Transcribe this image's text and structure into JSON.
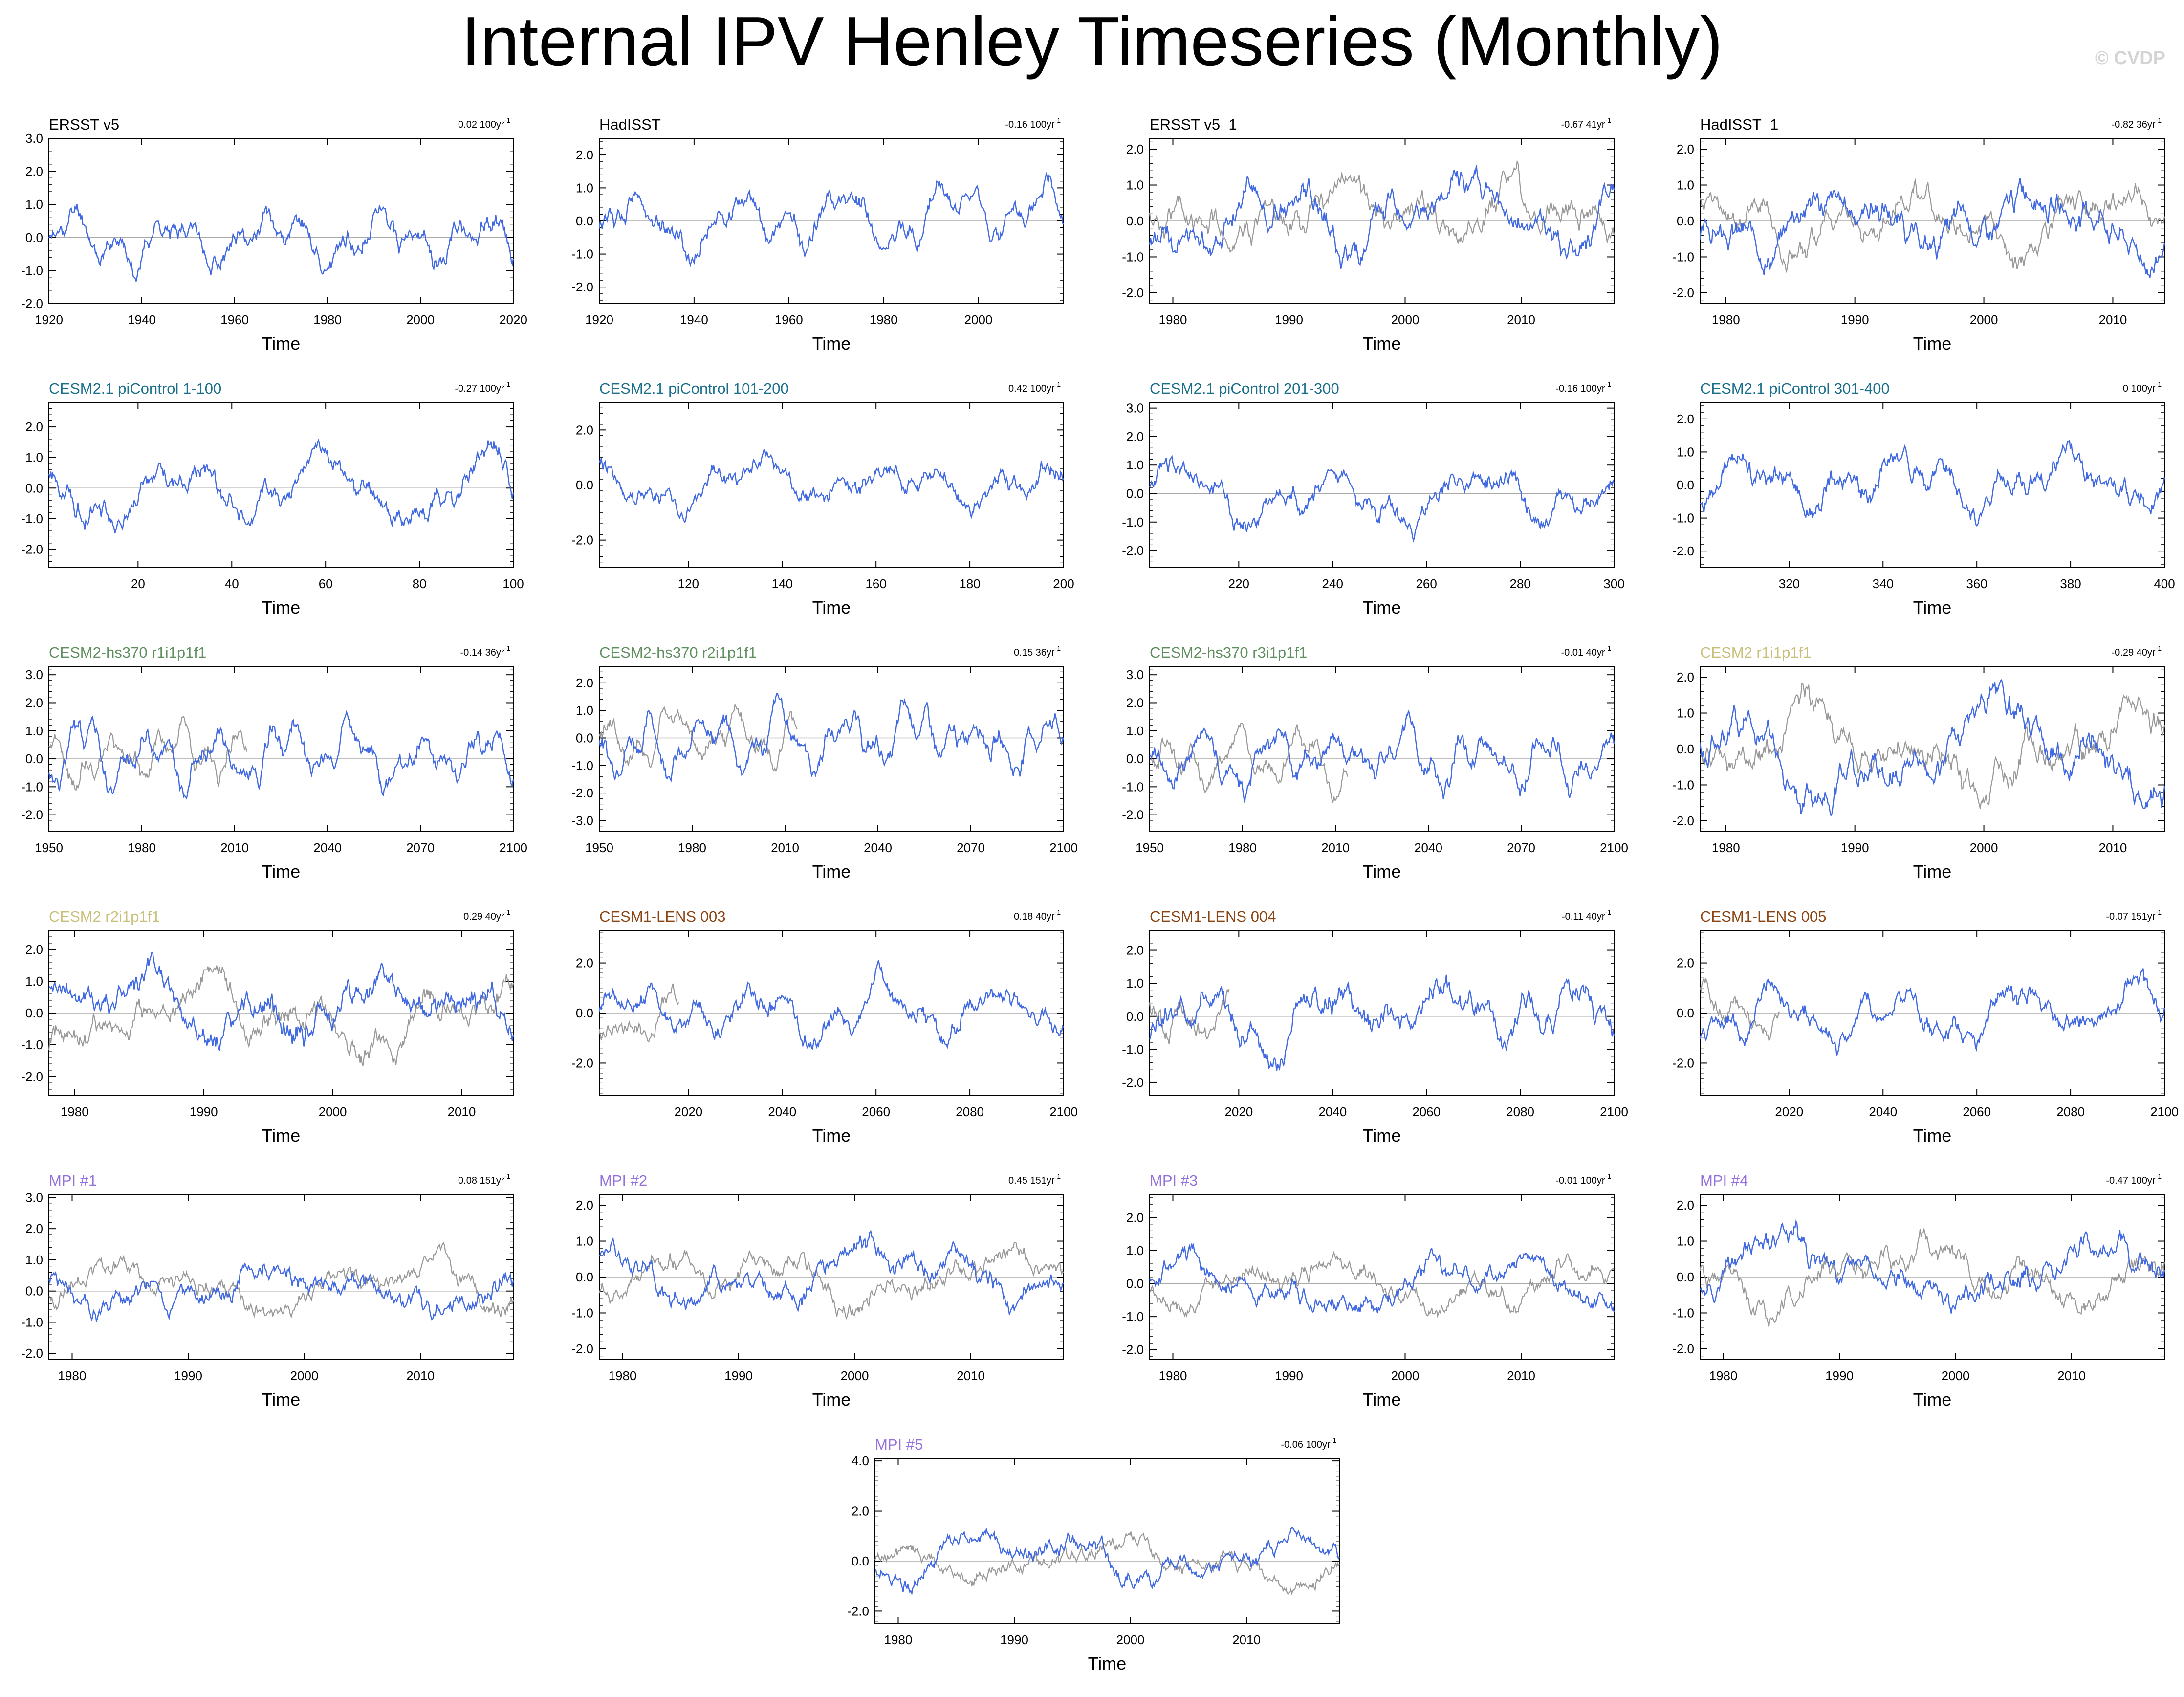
{
  "title": "Internal IPV Henley Timeseries (Monthly)",
  "credit": "© CVDP",
  "obs_color": "#999999",
  "model_color": "#4169E1",
  "chart_data": [
    {
      "type": "line",
      "title": "ERSST v5",
      "title_color": "#000000",
      "trend": "0.02 100yr",
      "trend_sup": "-1",
      "xlabel": "Time",
      "xlim": [
        1920,
        2020
      ],
      "xticks": [
        1920,
        1940,
        1960,
        1980,
        2000,
        2020
      ],
      "ylim": [
        -2.0,
        3.0
      ],
      "yticks": [
        "3.0",
        "2.0",
        "1.0",
        "0.0",
        "-1.0",
        "-2.0"
      ],
      "obs_overlay": false,
      "seed": 11,
      "amp": 0.75,
      "period": 0.06
    },
    {
      "type": "line",
      "title": "HadISST",
      "title_color": "#000000",
      "trend": "-0.16 100yr",
      "trend_sup": "-1",
      "xlabel": "Time",
      "xlim": [
        1920,
        2018
      ],
      "xticks": [
        1920,
        1940,
        1960,
        1980,
        2000
      ],
      "ylim": [
        -2.5,
        2.5
      ],
      "yticks": [
        "2.0",
        "1.0",
        "0.0",
        "-1.0",
        "-2.0"
      ],
      "obs_overlay": false,
      "seed": 12,
      "amp": 0.8,
      "period": 0.06
    },
    {
      "type": "line",
      "title": "ERSST v5_1",
      "title_color": "#000000",
      "trend": "-0.67 41yr",
      "trend_sup": "-1",
      "xlabel": "Time",
      "xlim": [
        1978,
        2018
      ],
      "xticks": [
        1980,
        1990,
        2000,
        2010
      ],
      "ylim": [
        -2.3,
        2.3
      ],
      "yticks": [
        "2.0",
        "1.0",
        "0.0",
        "-1.0",
        "-2.0"
      ],
      "obs_overlay": true,
      "seed": 13,
      "amp": 0.9,
      "period": 0.03
    },
    {
      "type": "line",
      "title": "HadISST_1",
      "title_color": "#000000",
      "trend": "-0.82 36yr",
      "trend_sup": "-1",
      "xlabel": "Time",
      "xlim": [
        1978,
        2014
      ],
      "xticks": [
        1980,
        1990,
        2000,
        2010
      ],
      "ylim": [
        -2.3,
        2.3
      ],
      "yticks": [
        "2.0",
        "1.0",
        "0.0",
        "-1.0",
        "-2.0"
      ],
      "obs_overlay": true,
      "seed": 14,
      "amp": 0.9,
      "period": 0.03
    },
    {
      "type": "line",
      "title": "CESM2.1 piControl 1-100",
      "title_color": "#1a6f8a",
      "trend": "-0.27 100yr",
      "trend_sup": "-1",
      "xlabel": "Time",
      "xlim": [
        1,
        100
      ],
      "xticks": [
        20,
        40,
        60,
        80,
        100
      ],
      "ylim": [
        -2.6,
        2.8
      ],
      "yticks": [
        "2.0",
        "1.0",
        "0.0",
        "-1.0",
        "-2.0"
      ],
      "obs_overlay": false,
      "seed": 21,
      "amp": 0.85,
      "period": 0.04
    },
    {
      "type": "line",
      "title": "CESM2.1 piControl 101-200",
      "title_color": "#1a6f8a",
      "trend": "0.42 100yr",
      "trend_sup": "-1",
      "xlabel": "Time",
      "xlim": [
        101,
        200
      ],
      "xticks": [
        120,
        140,
        160,
        180,
        200
      ],
      "ylim": [
        -3.0,
        3.0
      ],
      "yticks": [
        "2.0",
        "0.0",
        "-2.0"
      ],
      "obs_overlay": false,
      "seed": 22,
      "amp": 0.8,
      "period": 0.04
    },
    {
      "type": "line",
      "title": "CESM2.1 piControl 201-300",
      "title_color": "#1a6f8a",
      "trend": "-0.16 100yr",
      "trend_sup": "-1",
      "xlabel": "Time",
      "xlim": [
        201,
        300
      ],
      "xticks": [
        220,
        240,
        260,
        280,
        300
      ],
      "ylim": [
        -2.6,
        3.2
      ],
      "yticks": [
        "3.0",
        "2.0",
        "1.0",
        "0.0",
        "-1.0",
        "-2.0"
      ],
      "obs_overlay": false,
      "seed": 23,
      "amp": 0.9,
      "period": 0.04
    },
    {
      "type": "line",
      "title": "CESM2.1 piControl 301-400",
      "title_color": "#1a6f8a",
      "trend": "0 100yr",
      "trend_sup": "-1",
      "xlabel": "Time",
      "xlim": [
        301,
        400
      ],
      "xticks": [
        320,
        340,
        360,
        380,
        400
      ],
      "ylim": [
        -2.5,
        2.5
      ],
      "yticks": [
        "2.0",
        "1.0",
        "0.0",
        "-1.0",
        "-2.0"
      ],
      "obs_overlay": false,
      "seed": 24,
      "amp": 0.85,
      "period": 0.04
    },
    {
      "type": "line",
      "title": "CESM2-hs370 r1i1p1f1",
      "title_color": "#5f8f5f",
      "trend": "-0.14 36yr",
      "trend_sup": "-1",
      "xlabel": "Time",
      "xlim": [
        1950,
        2100
      ],
      "xticks": [
        1950,
        1980,
        2010,
        2040,
        2070,
        2100
      ],
      "ylim": [
        -2.6,
        3.3
      ],
      "yticks": [
        "3.0",
        "2.0",
        "1.0",
        "0.0",
        "-1.0",
        "-2.0"
      ],
      "obs_overlay": true,
      "obs_range": [
        1950,
        2014
      ],
      "seed": 31,
      "amp": 0.95,
      "period": 0.09
    },
    {
      "type": "line",
      "title": "CESM2-hs370 r2i1p1f1",
      "title_color": "#5f8f5f",
      "trend": "0.15 36yr",
      "trend_sup": "-1",
      "xlabel": "Time",
      "xlim": [
        1950,
        2100
      ],
      "xticks": [
        1950,
        1980,
        2010,
        2040,
        2070,
        2100
      ],
      "ylim": [
        -3.4,
        2.6
      ],
      "yticks": [
        "2.0",
        "1.0",
        "0.0",
        "-1.0",
        "-2.0",
        "-3.0"
      ],
      "obs_overlay": true,
      "obs_range": [
        1950,
        2014
      ],
      "seed": 32,
      "amp": 0.95,
      "period": 0.09
    },
    {
      "type": "line",
      "title": "CESM2-hs370 r3i1p1f1",
      "title_color": "#5f8f5f",
      "trend": "-0.01 40yr",
      "trend_sup": "-1",
      "xlabel": "Time",
      "xlim": [
        1950,
        2100
      ],
      "xticks": [
        1950,
        1980,
        2010,
        2040,
        2070,
        2100
      ],
      "ylim": [
        -2.6,
        3.3
      ],
      "yticks": [
        "3.0",
        "2.0",
        "1.0",
        "0.0",
        "-1.0",
        "-2.0"
      ],
      "obs_overlay": true,
      "obs_range": [
        1950,
        2014
      ],
      "seed": 33,
      "amp": 0.95,
      "period": 0.09
    },
    {
      "type": "line",
      "title": "CESM2 r1i1p1f1",
      "title_color": "#c8c07a",
      "trend": "-0.29 40yr",
      "trend_sup": "-1",
      "xlabel": "Time",
      "xlim": [
        1978,
        2014
      ],
      "xticks": [
        1980,
        1990,
        2000,
        2010
      ],
      "ylim": [
        -2.3,
        2.3
      ],
      "yticks": [
        "2.0",
        "1.0",
        "0.0",
        "-1.0",
        "-2.0"
      ],
      "obs_overlay": true,
      "seed": 34,
      "amp": 1.0,
      "period": 0.02
    },
    {
      "type": "line",
      "title": "CESM2 r2i1p1f1",
      "title_color": "#c8c07a",
      "trend": "0.29 40yr",
      "trend_sup": "-1",
      "xlabel": "Time",
      "xlim": [
        1978,
        2014
      ],
      "xticks": [
        1980,
        1990,
        2000,
        2010
      ],
      "ylim": [
        -2.6,
        2.6
      ],
      "yticks": [
        "2.0",
        "1.0",
        "0.0",
        "-1.0",
        "-2.0"
      ],
      "obs_overlay": true,
      "seed": 41,
      "amp": 1.0,
      "period": 0.02
    },
    {
      "type": "line",
      "title": "CESM1-LENS 003",
      "title_color": "#8b4513",
      "trend": "0.18 40yr",
      "trend_sup": "-1",
      "xlabel": "Time",
      "xlim": [
        2001,
        2100
      ],
      "xticks": [
        2020,
        2040,
        2060,
        2080,
        2100
      ],
      "ylim": [
        -3.3,
        3.3
      ],
      "yticks": [
        "2.0",
        "0.0",
        "-2.0"
      ],
      "obs_overlay": true,
      "obs_range": [
        2001,
        2018
      ],
      "seed": 42,
      "amp": 1.0,
      "period": 0.05
    },
    {
      "type": "line",
      "title": "CESM1-LENS 004",
      "title_color": "#8b4513",
      "trend": "-0.11 40yr",
      "trend_sup": "-1",
      "xlabel": "Time",
      "xlim": [
        2001,
        2100
      ],
      "xticks": [
        2020,
        2040,
        2060,
        2080,
        2100
      ],
      "ylim": [
        -2.4,
        2.6
      ],
      "yticks": [
        "2.0",
        "1.0",
        "0.0",
        "-1.0",
        "-2.0"
      ],
      "obs_overlay": true,
      "obs_range": [
        2001,
        2018
      ],
      "seed": 43,
      "amp": 0.95,
      "period": 0.05
    },
    {
      "type": "line",
      "title": "CESM1-LENS 005",
      "title_color": "#8b4513",
      "trend": "-0.07 151yr",
      "trend_sup": "-1",
      "xlabel": "Time",
      "xlim": [
        2001,
        2100
      ],
      "xticks": [
        2020,
        2040,
        2060,
        2080,
        2100
      ],
      "ylim": [
        -3.3,
        3.3
      ],
      "yticks": [
        "2.0",
        "0.0",
        "-2.0"
      ],
      "obs_overlay": true,
      "obs_range": [
        2001,
        2018
      ],
      "seed": 44,
      "amp": 1.0,
      "period": 0.05
    },
    {
      "type": "line",
      "title": "MPI #1",
      "title_color": "#9370db",
      "trend": "0.08 151yr",
      "trend_sup": "-1",
      "xlabel": "Time",
      "xlim": [
        1978,
        2018
      ],
      "xticks": [
        1980,
        1990,
        2000,
        2010
      ],
      "ylim": [
        -2.2,
        3.1
      ],
      "yticks": [
        "3.0",
        "2.0",
        "1.0",
        "0.0",
        "-1.0",
        "-2.0"
      ],
      "obs_overlay": true,
      "seed": 51,
      "amp": 0.75,
      "period": 0.02
    },
    {
      "type": "line",
      "title": "MPI #2",
      "title_color": "#9370db",
      "trend": "0.45 151yr",
      "trend_sup": "-1",
      "xlabel": "Time",
      "xlim": [
        1978,
        2018
      ],
      "xticks": [
        1980,
        1990,
        2000,
        2010
      ],
      "ylim": [
        -2.3,
        2.3
      ],
      "yticks": [
        "2.0",
        "1.0",
        "0.0",
        "-1.0",
        "-2.0"
      ],
      "obs_overlay": true,
      "seed": 52,
      "amp": 0.7,
      "period": 0.02
    },
    {
      "type": "line",
      "title": "MPI #3",
      "title_color": "#9370db",
      "trend": "-0.01 100yr",
      "trend_sup": "-1",
      "xlabel": "Time",
      "xlim": [
        1978,
        2018
      ],
      "xticks": [
        1980,
        1990,
        2000,
        2010
      ],
      "ylim": [
        -2.3,
        2.7
      ],
      "yticks": [
        "2.0",
        "1.0",
        "0.0",
        "-1.0",
        "-2.0"
      ],
      "obs_overlay": true,
      "seed": 53,
      "amp": 0.7,
      "period": 0.02
    },
    {
      "type": "line",
      "title": "MPI #4",
      "title_color": "#9370db",
      "trend": "-0.47 100yr",
      "trend_sup": "-1",
      "xlabel": "Time",
      "xlim": [
        1978,
        2018
      ],
      "xticks": [
        1980,
        1990,
        2000,
        2010
      ],
      "ylim": [
        -2.3,
        2.3
      ],
      "yticks": [
        "2.0",
        "1.0",
        "0.0",
        "-1.0",
        "-2.0"
      ],
      "obs_overlay": true,
      "seed": 54,
      "amp": 0.8,
      "period": 0.02
    },
    {
      "type": "line",
      "title": "MPI #5",
      "title_color": "#9370db",
      "trend": "-0.06 100yr",
      "trend_sup": "-1",
      "xlabel": "Time",
      "xlim": [
        1978,
        2018
      ],
      "xticks": [
        1980,
        1990,
        2000,
        2010
      ],
      "ylim": [
        -2.5,
        4.1
      ],
      "yticks": [
        "4.0",
        "2.0",
        "0.0",
        "-2.0"
      ],
      "obs_overlay": true,
      "seed": 55,
      "amp": 0.8,
      "period": 0.02
    }
  ]
}
